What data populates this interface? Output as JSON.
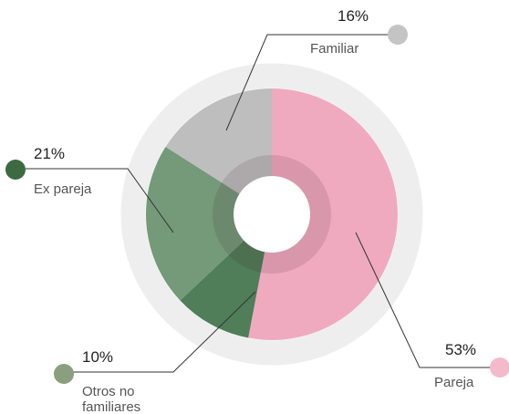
{
  "chart_data": {
    "type": "donut",
    "categories": [
      "Pareja",
      "Otros no familiares",
      "Ex pareja",
      "Familiar"
    ],
    "values": [
      53,
      10,
      21,
      16
    ],
    "value_labels": [
      "53%",
      "10%",
      "21%",
      "16%"
    ],
    "colors": [
      "#f0aac0",
      "#4f7e58",
      "#749a79",
      "#bebebe"
    ],
    "legend_colors": [
      "#f5b9cc",
      "#8b9e7f",
      "#3c6a41",
      "#c4c4c4"
    ]
  }
}
